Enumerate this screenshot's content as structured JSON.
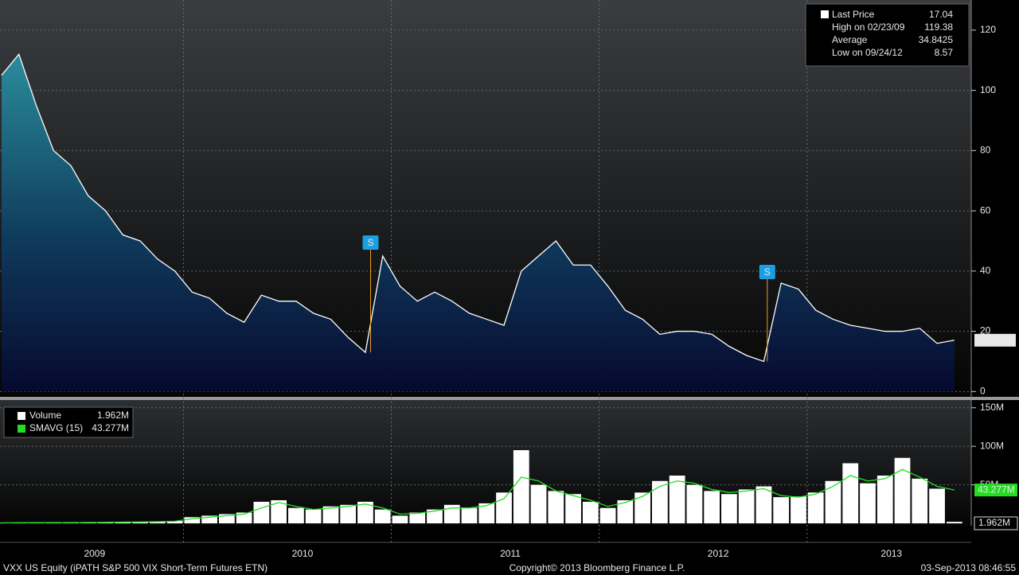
{
  "chart_data": [
    {
      "type": "area",
      "categories": [
        null,
        null,
        null,
        null,
        null,
        null,
        null,
        null,
        null,
        null,
        null,
        null,
        null,
        null,
        null,
        null,
        null,
        null,
        null,
        null,
        null,
        null,
        null,
        null,
        null,
        null,
        null,
        null,
        null,
        null,
        null,
        null,
        null,
        null,
        null,
        null,
        null,
        null,
        null,
        null,
        null,
        null,
        null,
        null,
        null,
        null,
        null,
        null,
        null,
        null,
        null,
        null,
        null,
        null,
        null,
        null
      ],
      "series": [
        {
          "name": "Last Price",
          "color": "#ffffff",
          "values": [
            105,
            112,
            95,
            80,
            75,
            65,
            60,
            52,
            50,
            44,
            40,
            33,
            31,
            26,
            23,
            32,
            30,
            30,
            26,
            24,
            18,
            13,
            45,
            35,
            30,
            33,
            30,
            26,
            24,
            22,
            40,
            45,
            50,
            42,
            42,
            35,
            27,
            24,
            19,
            20,
            20,
            19,
            15,
            12,
            10,
            36,
            34,
            27,
            24,
            22,
            21,
            20,
            20,
            21,
            16,
            17.04
          ]
        }
      ],
      "stats": [
        {
          "label": "High on 02/23/09",
          "value": 119.38
        },
        {
          "label": "Average",
          "value": 34.8425
        },
        {
          "label": "Low on 09/24/12",
          "value": 8.57
        }
      ],
      "annotations": [
        "S",
        "S"
      ],
      "ylim": [
        -1.5,
        130
      ],
      "yticks": [
        0,
        20,
        40,
        60,
        80,
        100,
        120
      ],
      "grid": true
    },
    {
      "type": "bar",
      "categories": [
        null,
        null,
        null,
        null,
        null,
        "2009",
        null,
        null,
        null,
        null,
        null,
        null,
        null,
        null,
        null,
        null,
        null,
        "2010",
        null,
        null,
        null,
        null,
        null,
        null,
        null,
        null,
        null,
        null,
        null,
        "2011",
        null,
        null,
        null,
        null,
        null,
        null,
        null,
        null,
        null,
        null,
        null,
        "2012",
        null,
        null,
        null,
        null,
        null,
        null,
        null,
        null,
        null,
        "2013",
        null,
        null,
        null,
        null
      ],
      "series": [
        {
          "name": "Volume",
          "color": "#ffffff",
          "values": [
            0.8,
            0.9,
            1,
            1,
            1.1,
            1.2,
            1.5,
            1.8,
            2,
            2.5,
            3,
            8,
            10,
            12,
            14,
            28,
            30,
            20,
            18,
            22,
            24,
            28,
            18,
            10,
            14,
            18,
            24,
            20,
            26,
            40,
            95,
            50,
            42,
            38,
            28,
            20,
            30,
            40,
            55,
            62,
            50,
            42,
            38,
            44,
            48,
            34,
            35,
            40,
            55,
            78,
            52,
            62,
            85,
            58,
            45,
            1.962
          ],
          "value_labels": [
            null,
            null,
            null,
            null,
            null,
            null,
            null,
            null,
            null,
            null,
            null,
            null,
            null,
            null,
            null,
            null,
            null,
            null,
            null,
            null,
            null,
            null,
            null,
            null,
            null,
            null,
            null,
            null,
            null,
            null,
            null,
            null,
            null,
            null,
            null,
            null,
            null,
            null,
            null,
            null,
            null,
            null,
            null,
            null,
            null,
            null,
            null,
            null,
            null,
            null,
            null,
            null,
            null,
            null,
            null,
            "1.962M"
          ]
        },
        {
          "name": "SMAVG (15)",
          "color": "#22dd22",
          "values": [
            0.7,
            0.8,
            0.9,
            1,
            1,
            1.1,
            1.3,
            1.6,
            1.8,
            2.2,
            2.8,
            6,
            8,
            10,
            12,
            20,
            27,
            22,
            18,
            20,
            22,
            25,
            20,
            12,
            13,
            16,
            20,
            20,
            23,
            32,
            60,
            55,
            42,
            36,
            30,
            22,
            27,
            35,
            48,
            55,
            52,
            44,
            40,
            42,
            45,
            36,
            34,
            38,
            48,
            62,
            55,
            58,
            70,
            60,
            48,
            43.277
          ],
          "value_labels": [
            null,
            null,
            null,
            null,
            null,
            null,
            null,
            null,
            null,
            null,
            null,
            null,
            null,
            null,
            null,
            null,
            null,
            null,
            null,
            null,
            null,
            null,
            null,
            null,
            null,
            null,
            null,
            null,
            null,
            null,
            null,
            null,
            null,
            null,
            null,
            null,
            null,
            null,
            null,
            null,
            null,
            null,
            null,
            null,
            null,
            null,
            null,
            null,
            null,
            null,
            null,
            null,
            null,
            null,
            null,
            "43.277M"
          ]
        }
      ],
      "ylim": [
        -2,
        158
      ],
      "yticks": [
        {
          "value": 50,
          "label": "50M"
        },
        {
          "value": 100,
          "label": "100M"
        },
        {
          "value": 150,
          "label": "150M"
        }
      ],
      "grid": true
    }
  ],
  "footer": {
    "left": "VXX US Equity (iPATH S&P 500 VIX Short-Term Futures ETN)",
    "center": "Copyright© 2013 Bloomberg Finance L.P.",
    "right": "03-Sep-2013 08:46:55"
  }
}
